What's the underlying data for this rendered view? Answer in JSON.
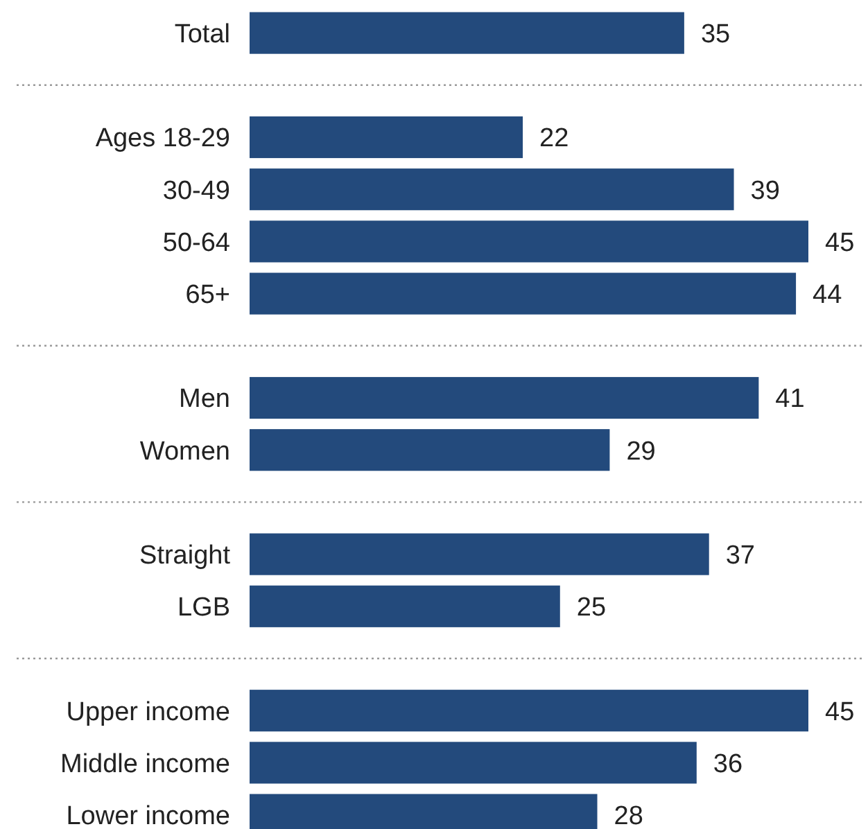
{
  "chart_data": {
    "type": "bar",
    "orientation": "horizontal",
    "categories": [
      "Total",
      null,
      "Ages 18-29",
      "30-49",
      "50-64",
      "65+",
      null,
      "Men",
      "Women",
      null,
      "Straight",
      "LGB",
      null,
      "Upper income",
      "Middle income",
      "Lower income"
    ],
    "values": [
      35,
      null,
      22,
      39,
      45,
      44,
      null,
      41,
      29,
      null,
      37,
      25,
      null,
      45,
      36,
      28
    ],
    "color": "#234a7c",
    "xlim": [
      0,
      45
    ],
    "tick_labels": "y",
    "data_labels": true
  }
}
